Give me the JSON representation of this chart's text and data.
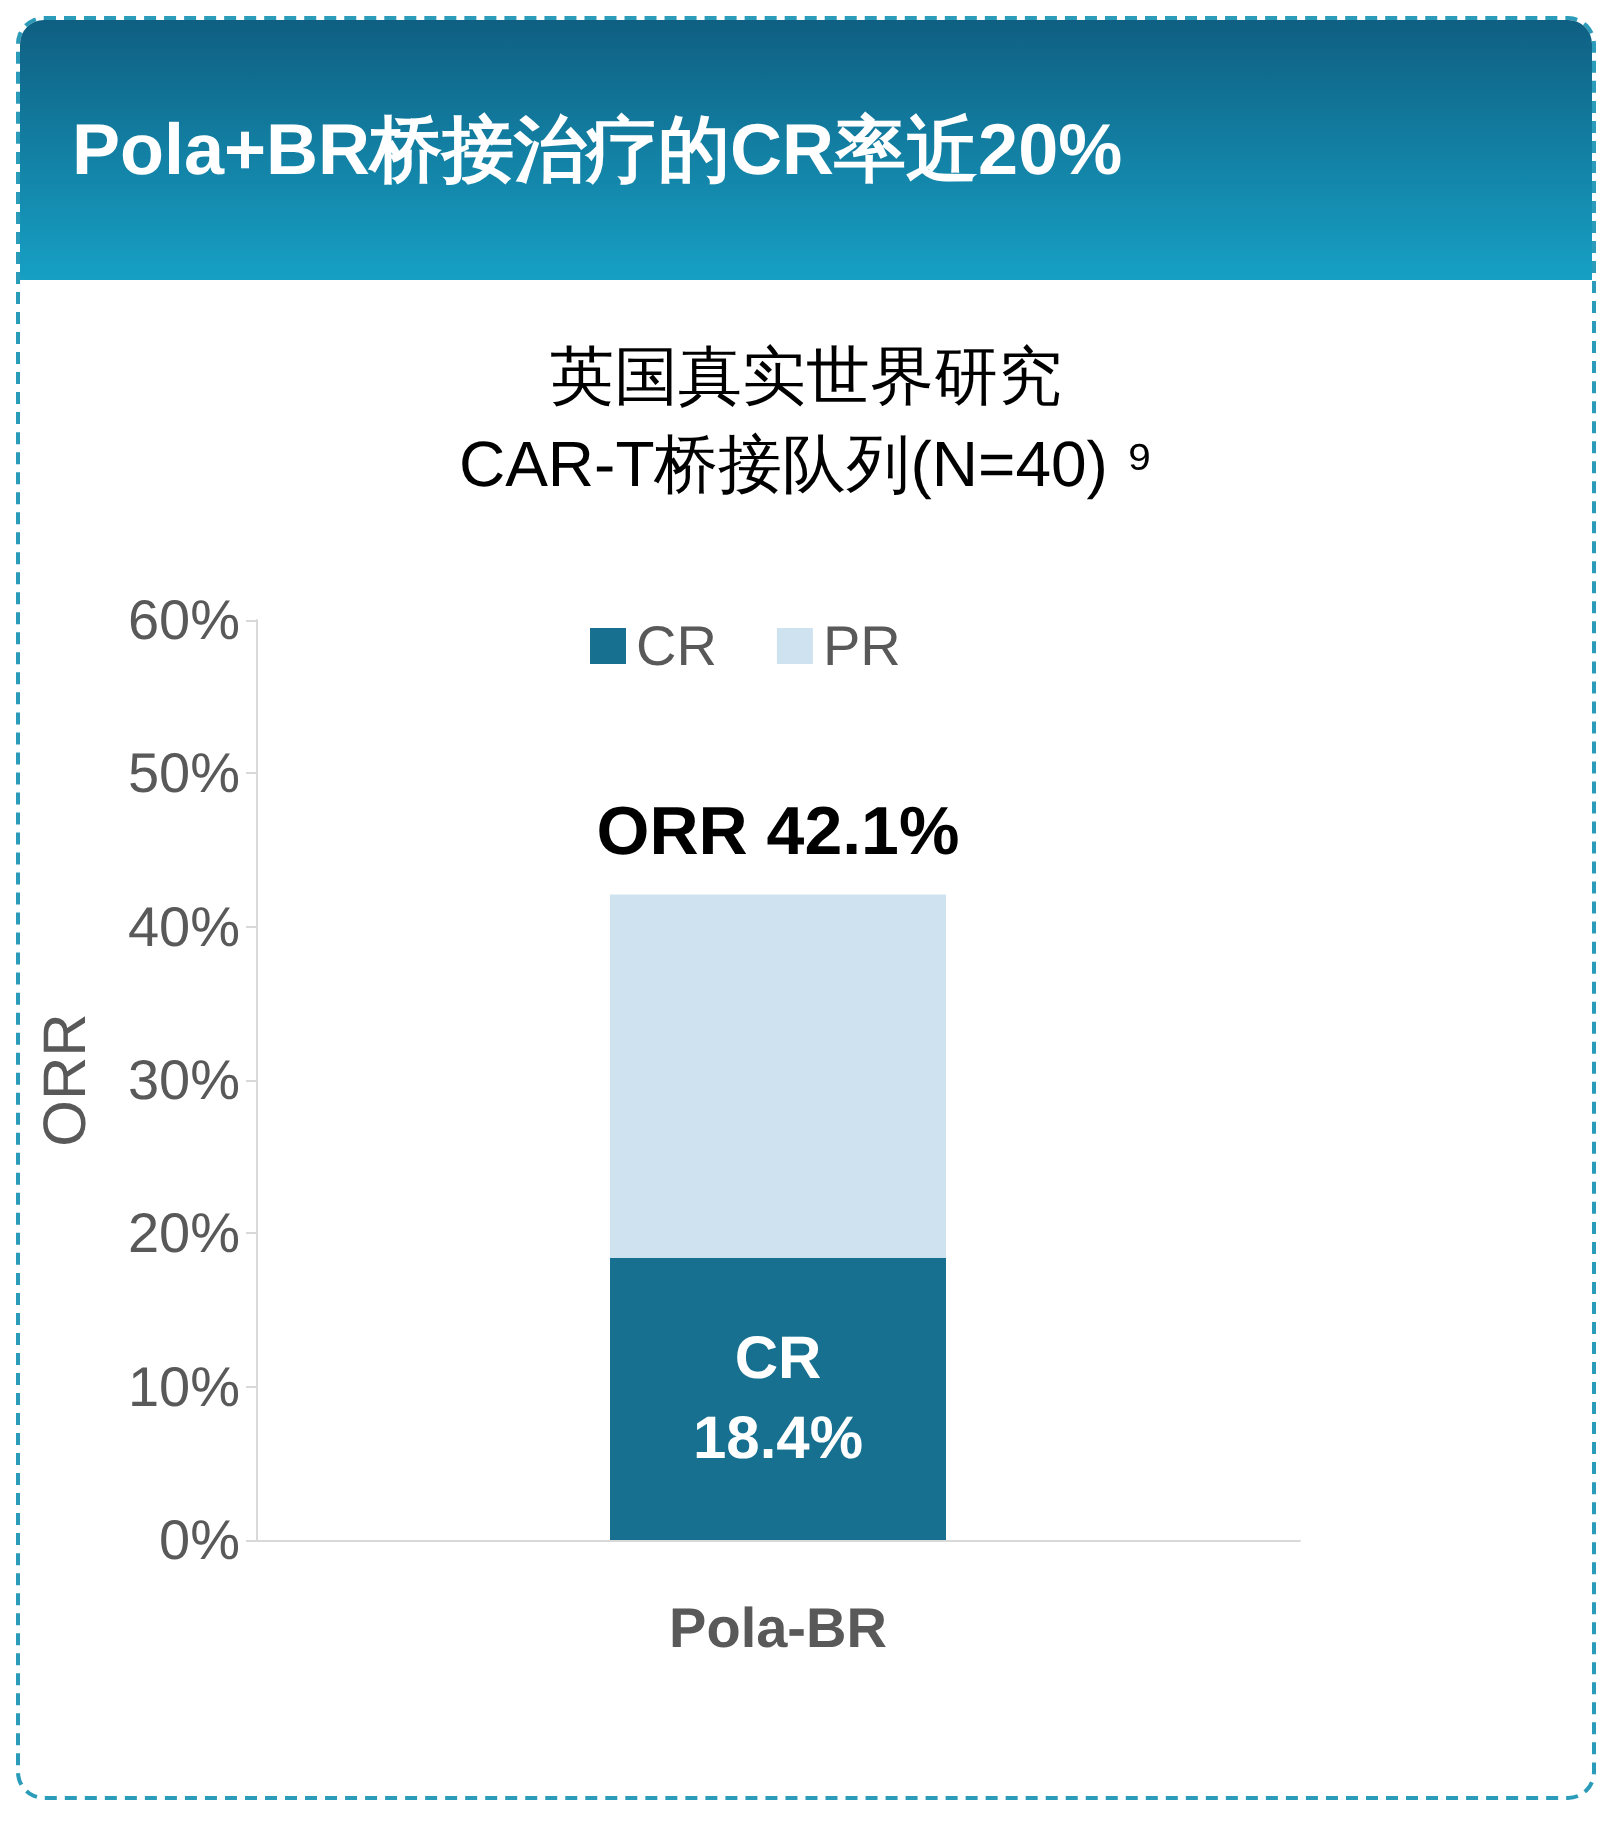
{
  "chart_data": {
    "type": "bar",
    "title": "Pola+BR桥接治疗的CR率近20%",
    "subtitle": "英国真实世界研究\nCAR-T桥接队列(N=40) ⁹",
    "ylabel": "ORR",
    "categories": [
      "Pola-BR"
    ],
    "stacked": true,
    "series": [
      {
        "name": "CR",
        "color": "#17708f",
        "values": [
          18.4
        ],
        "value_labels": [
          "CR\n18.4%"
        ]
      },
      {
        "name": "PR",
        "color": "#cfe2f0",
        "values": [
          23.7
        ]
      }
    ],
    "totals": [
      "ORR 42.1%"
    ],
    "ylim": [
      0,
      60
    ],
    "yticks": [
      {
        "value": 0,
        "label": "0%"
      },
      {
        "value": 10,
        "label": "10%"
      },
      {
        "value": 20,
        "label": "20%"
      },
      {
        "value": 30,
        "label": "30%"
      },
      {
        "value": 40,
        "label": "40%"
      },
      {
        "value": 50,
        "label": "50%"
      },
      {
        "value": 60,
        "label": "60%"
      }
    ],
    "legend": "top",
    "grid": false
  }
}
